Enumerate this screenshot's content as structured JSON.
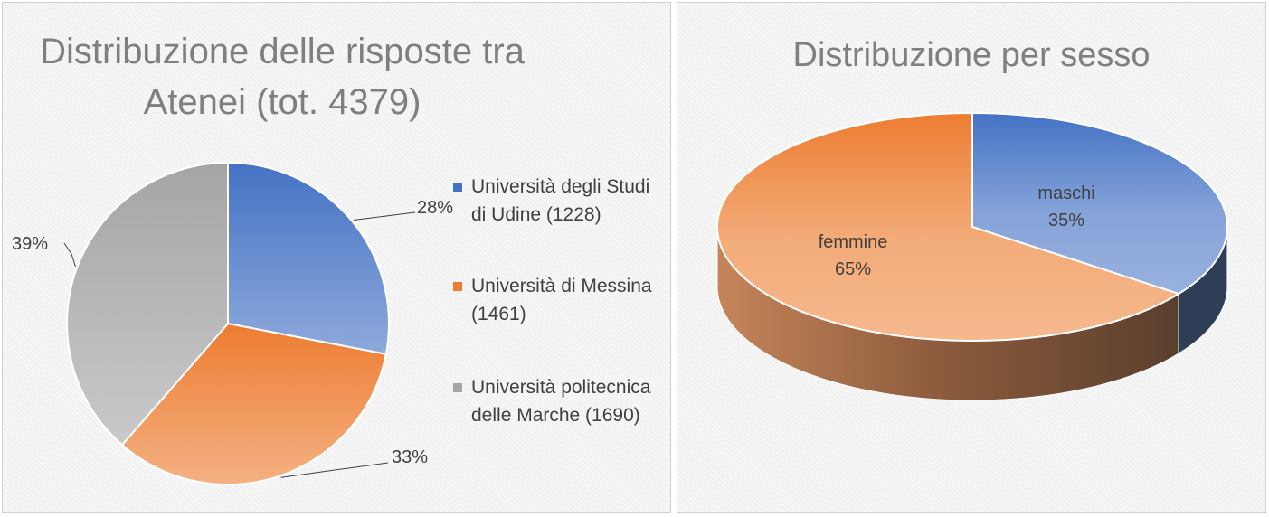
{
  "chart_data": [
    {
      "type": "pie",
      "title": "Distribuzione delle risposte tra Atenei (tot. 4379)",
      "categories": [
        "Università degli Studi di Udine (1228)",
        "Università di Messina (1461)",
        "Università politecnica delle Marche (1690)"
      ],
      "values": [
        1228,
        1461,
        1690
      ],
      "data_labels": [
        "28%",
        "33%",
        "39%"
      ],
      "colors": [
        "#4472c4",
        "#ed7d31",
        "#a5a5a5"
      ],
      "legend_position": "right"
    },
    {
      "type": "pie",
      "title": "Distribuzione per sesso",
      "categories": [
        "maschi",
        "femmine"
      ],
      "values": [
        35,
        65
      ],
      "data_labels": [
        "35%",
        "65%"
      ],
      "colors": [
        "#4472c4",
        "#ed7d31"
      ],
      "style": "3d",
      "legend_position": "none"
    }
  ]
}
